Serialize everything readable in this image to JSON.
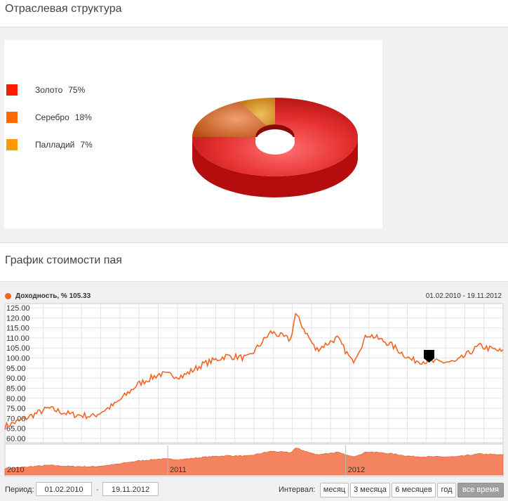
{
  "section1": {
    "title": "Отраслевая структура"
  },
  "pie": {
    "legend": [
      {
        "label": "Золото",
        "pct": "75%",
        "color": "#ff0000"
      },
      {
        "label": "Серебро",
        "pct": "18%",
        "color": "#ff6600"
      },
      {
        "label": "Палладий",
        "pct": "7%",
        "color": "#ff9900"
      }
    ]
  },
  "section2": {
    "title": "График стоимости пая"
  },
  "chart_head": {
    "series_label": "Доходность, % 105.33",
    "date_range": "01.02.2010 - 19.11.2012"
  },
  "controls": {
    "period_label": "Период:",
    "date_from": "01.02.2010",
    "date_to": "19.11.2012",
    "interval_label": "Интервал:",
    "buttons": [
      "месяц",
      "3 месяца",
      "6 месяцев",
      "год",
      "все время"
    ]
  },
  "chart_data": [
    {
      "type": "pie",
      "categories": [
        "Золото",
        "Серебро",
        "Палладий"
      ],
      "values": [
        75,
        18,
        7
      ],
      "colors": [
        "#c8121a",
        "#e0721c",
        "#e0a21c"
      ]
    },
    {
      "type": "line",
      "series": [
        {
          "name": "Доходность, %",
          "color": "#f26522",
          "x": [
            "2010-02-01",
            "2010-03-15",
            "2010-05-01",
            "2010-06-15",
            "2010-08-01",
            "2010-09-15",
            "2010-11-01",
            "2010-12-15",
            "2011-02-01",
            "2011-03-15",
            "2011-05-01",
            "2011-06-15",
            "2011-08-01",
            "2011-09-10",
            "2011-09-20",
            "2011-11-01",
            "2011-12-15",
            "2012-01-15",
            "2012-02-15",
            "2012-04-01",
            "2012-05-15",
            "2012-07-01",
            "2012-08-15",
            "2012-10-01",
            "2012-11-19"
          ],
          "values": [
            66,
            70,
            75,
            72,
            71,
            77,
            87,
            92,
            91,
            97,
            101,
            100,
            113,
            109,
            122,
            104,
            110,
            98,
            112,
            107,
            99,
            98,
            98,
            106,
            103
          ]
        }
      ],
      "ylim": [
        60,
        125
      ],
      "yticks": [
        "60.00",
        "65.00",
        "70.00",
        "75.00",
        "80.00",
        "85.00",
        "90.00",
        "95.00",
        "100.00",
        "105.00",
        "110.00",
        "115.00",
        "120.00",
        "125.00"
      ],
      "navigator_years": [
        "2010",
        "2011",
        "2012"
      ],
      "grid": true
    }
  ]
}
